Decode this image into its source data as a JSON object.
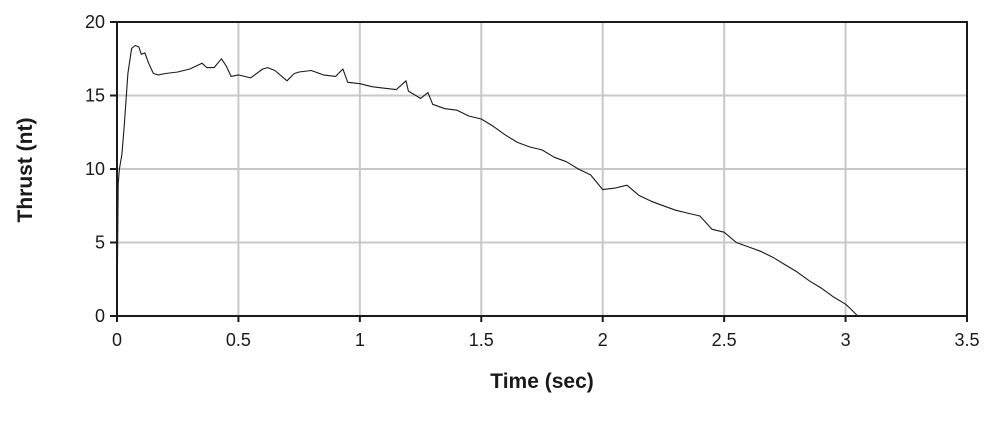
{
  "chart_data": {
    "type": "line",
    "title": "",
    "xlabel": "Time (sec)",
    "ylabel": "Thrust (nt)",
    "xlim": [
      0,
      3.5
    ],
    "ylim": [
      0,
      20
    ],
    "xticks": [
      0,
      0.5,
      1,
      1.5,
      2,
      2.5,
      3,
      3.5
    ],
    "xtick_labels": [
      "0",
      "0.5",
      "1",
      "1.5",
      "2",
      "2.5",
      "3",
      "3.5"
    ],
    "yticks": [
      0,
      5,
      10,
      15,
      20
    ],
    "ytick_labels": [
      "0",
      "5",
      "10",
      "15",
      "20"
    ],
    "grid": true,
    "legend": "none",
    "series": [
      {
        "color": "#1a1a1a",
        "x": [
          0,
          0.005,
          0.01,
          0.02,
          0.03,
          0.045,
          0.06,
          0.075,
          0.09,
          0.1,
          0.115,
          0.13,
          0.15,
          0.17,
          0.2,
          0.25,
          0.3,
          0.35,
          0.37,
          0.4,
          0.43,
          0.45,
          0.47,
          0.5,
          0.55,
          0.6,
          0.62,
          0.65,
          0.7,
          0.73,
          0.75,
          0.8,
          0.85,
          0.9,
          0.93,
          0.95,
          1.0,
          1.05,
          1.1,
          1.15,
          1.19,
          1.2,
          1.25,
          1.28,
          1.3,
          1.35,
          1.4,
          1.45,
          1.5,
          1.55,
          1.6,
          1.65,
          1.7,
          1.75,
          1.8,
          1.85,
          1.9,
          1.95,
          2.0,
          2.05,
          2.1,
          2.15,
          2.2,
          2.25,
          2.3,
          2.35,
          2.4,
          2.45,
          2.5,
          2.55,
          2.6,
          2.65,
          2.7,
          2.75,
          2.8,
          2.85,
          2.9,
          2.95,
          3.0,
          3.02,
          3.05
        ],
        "values": [
          0,
          9,
          10,
          11,
          13,
          16.5,
          18.2,
          18.4,
          18.3,
          17.8,
          17.9,
          17.2,
          16.5,
          16.4,
          16.5,
          16.6,
          16.8,
          17.2,
          16.9,
          16.9,
          17.5,
          17.0,
          16.3,
          16.4,
          16.2,
          16.8,
          16.9,
          16.7,
          16.0,
          16.5,
          16.6,
          16.7,
          16.4,
          16.3,
          16.8,
          15.9,
          15.8,
          15.6,
          15.5,
          15.4,
          16.0,
          15.3,
          14.8,
          15.2,
          14.4,
          14.1,
          14.0,
          13.6,
          13.4,
          12.9,
          12.3,
          11.8,
          11.5,
          11.3,
          10.8,
          10.5,
          10.0,
          9.6,
          8.6,
          8.7,
          8.9,
          8.2,
          7.8,
          7.5,
          7.2,
          7.0,
          6.8,
          5.9,
          5.7,
          5.0,
          4.7,
          4.4,
          4.0,
          3.5,
          3.0,
          2.4,
          1.9,
          1.3,
          0.8,
          0.5,
          0.0
        ]
      }
    ]
  }
}
